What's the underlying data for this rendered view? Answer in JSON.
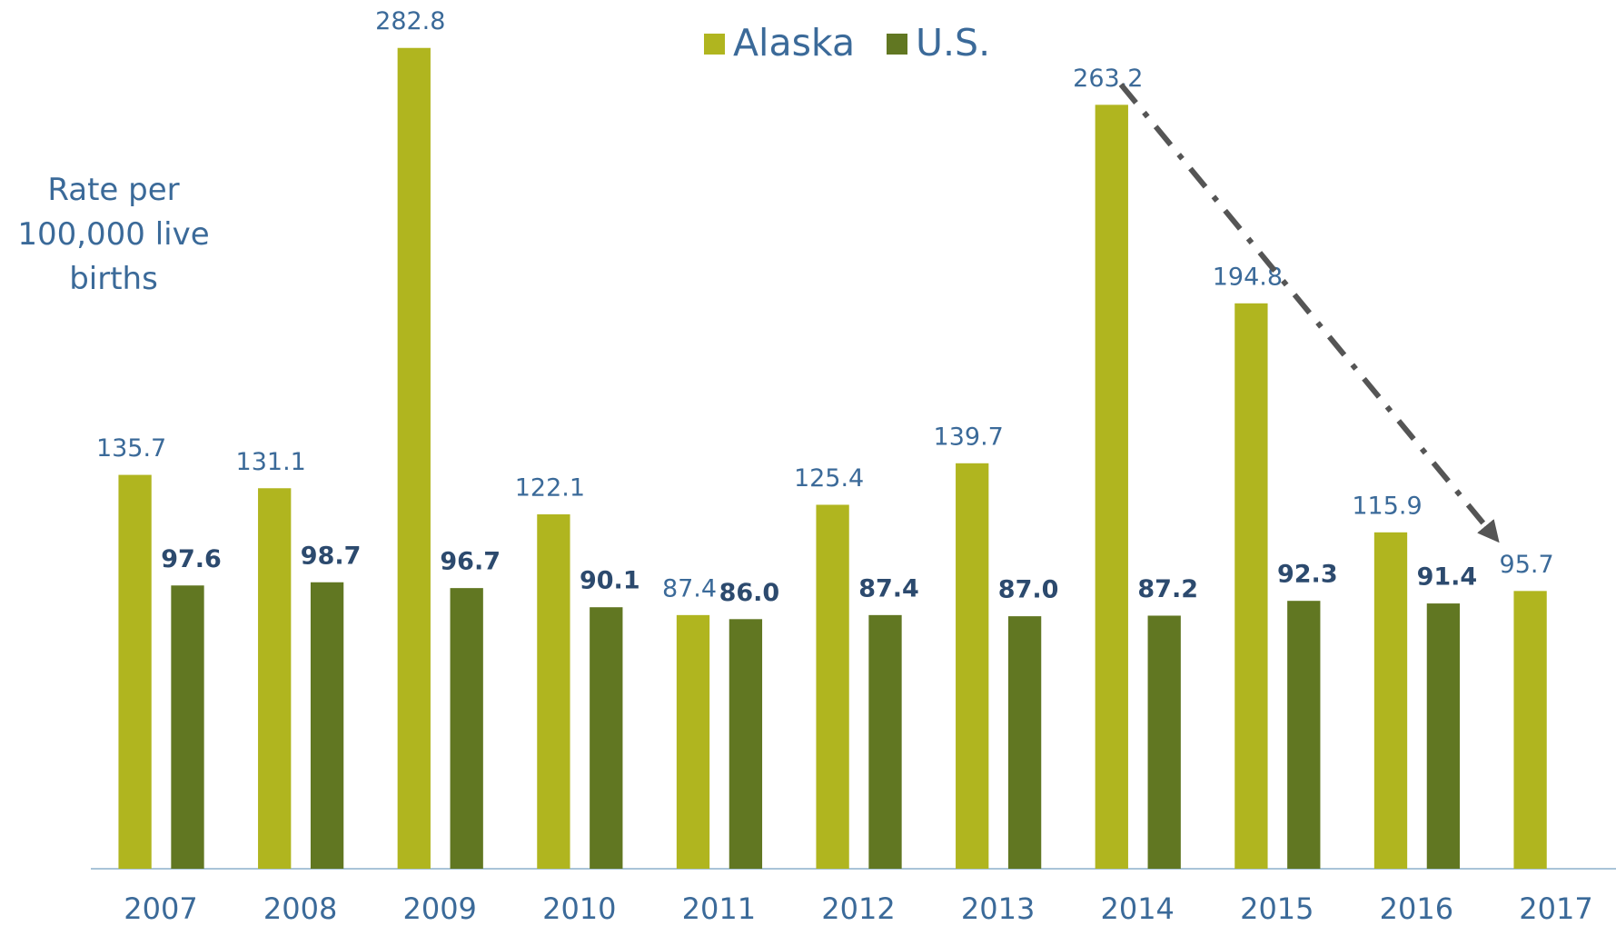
{
  "chart_data": {
    "type": "bar",
    "y_label": "Rate per 100,000 live births",
    "categories": [
      "2007",
      "2008",
      "2009",
      "2010",
      "2011",
      "2012",
      "2013",
      "2014",
      "2015",
      "2016",
      "2017"
    ],
    "series": [
      {
        "name": "Alaska",
        "color": "#b0b51f",
        "values": [
          135.7,
          131.1,
          282.8,
          122.1,
          87.4,
          125.4,
          139.7,
          263.2,
          194.8,
          115.9,
          95.7
        ]
      },
      {
        "name": "U.S.",
        "color": "#617722",
        "values": [
          97.6,
          98.7,
          96.7,
          90.1,
          86.0,
          87.4,
          87.0,
          87.2,
          92.3,
          91.4,
          null
        ],
        "value_labels": [
          "97.6",
          "98.7",
          "96.7",
          "90.1",
          "86.0",
          "87.4",
          "87.0",
          "87.2",
          "92.3",
          "91.4",
          null
        ]
      }
    ],
    "legend": "top"
  }
}
